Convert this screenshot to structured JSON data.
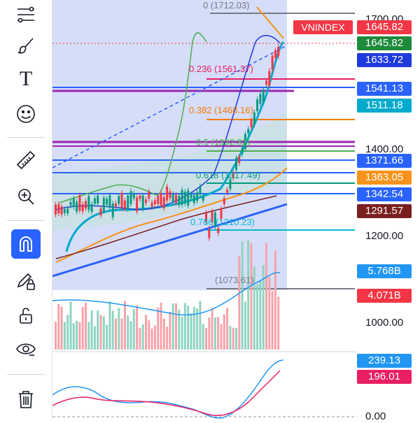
{
  "symbol": "VNINDEX",
  "colors": {
    "accent": "#2962ff",
    "down": "#f23645",
    "up": "#089981",
    "fib_zone": "#c7d2f5"
  },
  "toolbar": {
    "items": [
      {
        "name": "fib-icon"
      },
      {
        "name": "brush-icon"
      },
      {
        "name": "text-icon"
      },
      {
        "name": "emoji-icon"
      },
      {
        "name": "ruler-icon"
      },
      {
        "name": "zoom-in-icon"
      },
      {
        "name": "magnet-icon"
      },
      {
        "name": "pencil-lock-icon"
      },
      {
        "name": "unlock-icon"
      },
      {
        "name": "eye-icon"
      },
      {
        "name": "trash-icon"
      }
    ],
    "text_glyph": "T"
  },
  "price_axis": {
    "ticks": [
      "1700.00",
      "1400.00",
      "1200.00",
      "1000.00",
      "0.00"
    ]
  },
  "badges": [
    {
      "label": "1645.82",
      "color": "#f23645"
    },
    {
      "label": "1645.82",
      "color": "#1e8a3c"
    },
    {
      "label": "1633.72",
      "color": "#1e3adb"
    },
    {
      "label": "1541.13",
      "color": "#2962ff"
    },
    {
      "label": "1511.18",
      "color": "#00aacc"
    },
    {
      "label": "1371.66",
      "color": "#2962ff"
    },
    {
      "label": "1363.05",
      "color": "#f7931a"
    },
    {
      "label": "1342.54",
      "color": "#2962ff"
    },
    {
      "label": "1291.57",
      "color": "#7a1f1f"
    },
    {
      "label": "5.768B",
      "color": "#2196f3"
    },
    {
      "label": "4.071B",
      "color": "#f23645"
    },
    {
      "label": "239.13",
      "color": "#2196f3"
    },
    {
      "label": "196.01",
      "color": "#e91e63"
    }
  ],
  "fib_levels": [
    {
      "label": "0 (1712.03)",
      "color": "#787b86"
    },
    {
      "label": "0.236 (1561.37)",
      "color": "#e91e63"
    },
    {
      "label": "0.382 (1468.16)",
      "color": "#f57c00"
    },
    {
      "label": "0.5 (1392.82)",
      "color": "#4caf50"
    },
    {
      "label": "0.618 (1317.49)",
      "color": "#089981"
    },
    {
      "label": "0.786 (1210.23)",
      "color": "#00bcd4"
    },
    {
      "label": "(1073.61)",
      "color": "#787b86"
    }
  ]
}
